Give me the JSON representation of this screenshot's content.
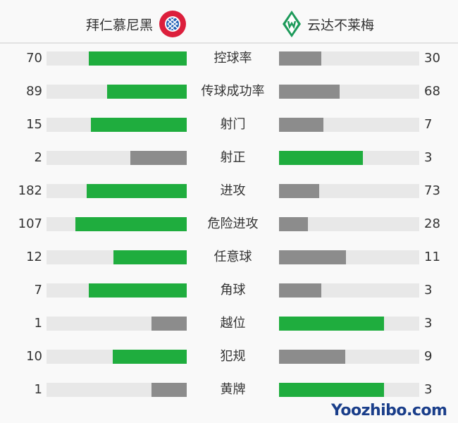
{
  "header": {
    "home_team": "拜仁慕尼黑",
    "away_team": "云达不莱梅"
  },
  "colors": {
    "leader": "#1fad3e",
    "trailer": "#8c8c8c",
    "track": "#e8e8e8"
  },
  "stats": [
    {
      "label": "控球率",
      "home": 70,
      "away": 30
    },
    {
      "label": "传球成功率",
      "home": 89,
      "away": 68
    },
    {
      "label": "射门",
      "home": 15,
      "away": 7
    },
    {
      "label": "射正",
      "home": 2,
      "away": 3
    },
    {
      "label": "进攻",
      "home": 182,
      "away": 73
    },
    {
      "label": "危险进攻",
      "home": 107,
      "away": 28
    },
    {
      "label": "任意球",
      "home": 12,
      "away": 11
    },
    {
      "label": "角球",
      "home": 7,
      "away": 3
    },
    {
      "label": "越位",
      "home": 1,
      "away": 3
    },
    {
      "label": "犯规",
      "home": 10,
      "away": 9
    },
    {
      "label": "黄牌",
      "home": 1,
      "away": 3
    }
  ],
  "watermark": "Yoozhibo.com"
}
